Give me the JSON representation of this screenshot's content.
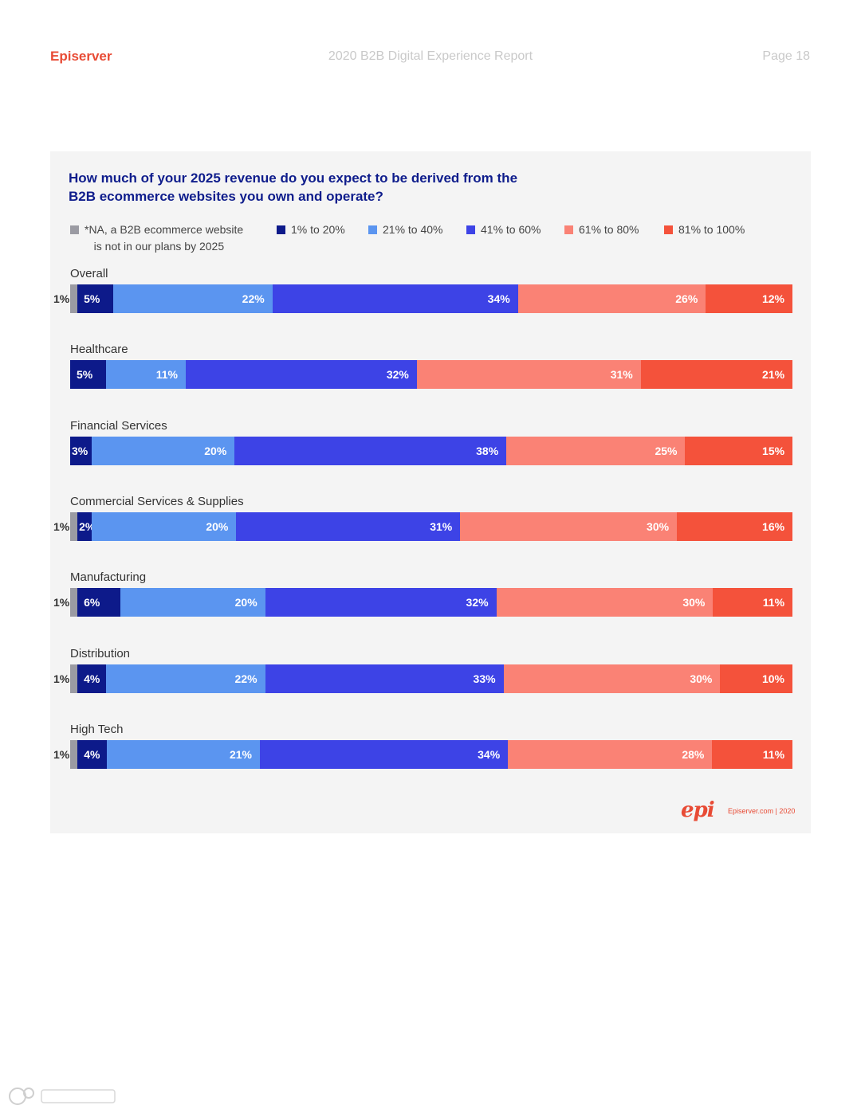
{
  "header": {
    "brand": "Episerver",
    "title": "2020 B2B Digital Experience Report",
    "page": "Page 18"
  },
  "colors": {
    "na": "#9b9ba3",
    "c1_20": "#0d1a8a",
    "c21_40": "#5b95f0",
    "c41_60": "#3d43e6",
    "c61_80": "#fa8275",
    "c81_100": "#f4523b",
    "accent": "#e84b35",
    "question": "#0f1d8c"
  },
  "chart_data": {
    "type": "bar",
    "orientation": "horizontal-stacked-100",
    "title": "How much of your 2025 revenue do you expect to be derived from the B2B ecommerce websites you own and operate?",
    "legend": [
      {
        "label": "*NA, a B2B ecommerce website\n   is not in our plans by 2025",
        "color_key": "na"
      },
      {
        "label": "1% to 20%",
        "color_key": "c1_20"
      },
      {
        "label": "21% to 40%",
        "color_key": "c21_40"
      },
      {
        "label": "41% to 60%",
        "color_key": "c41_60"
      },
      {
        "label": "61% to 80%",
        "color_key": "c61_80"
      },
      {
        "label": "81% to 100%",
        "color_key": "c81_100"
      }
    ],
    "categories": [
      "Overall",
      "Healthcare",
      "Financial Services",
      "Commercial Services & Supplies",
      "Manufacturing",
      "Distribution",
      "High Tech"
    ],
    "series": [
      {
        "name": "*NA, a B2B ecommerce website is not in our plans by 2025",
        "color_key": "na",
        "values": [
          1,
          0,
          0,
          1,
          1,
          1,
          1
        ]
      },
      {
        "name": "1% to 20%",
        "color_key": "c1_20",
        "values": [
          5,
          5,
          3,
          2,
          6,
          4,
          4
        ]
      },
      {
        "name": "21% to 40%",
        "color_key": "c21_40",
        "values": [
          22,
          11,
          20,
          20,
          20,
          22,
          21
        ]
      },
      {
        "name": "41% to 60%",
        "color_key": "c41_60",
        "values": [
          34,
          32,
          38,
          31,
          32,
          33,
          34
        ]
      },
      {
        "name": "61% to 80%",
        "color_key": "c61_80",
        "values": [
          26,
          31,
          25,
          30,
          30,
          30,
          28
        ]
      },
      {
        "name": "81% to 100%",
        "color_key": "c81_100",
        "values": [
          12,
          21,
          15,
          16,
          11,
          10,
          11
        ]
      }
    ]
  },
  "footer": {
    "logo": "epi",
    "text": "Episerver.com  |  2020"
  }
}
